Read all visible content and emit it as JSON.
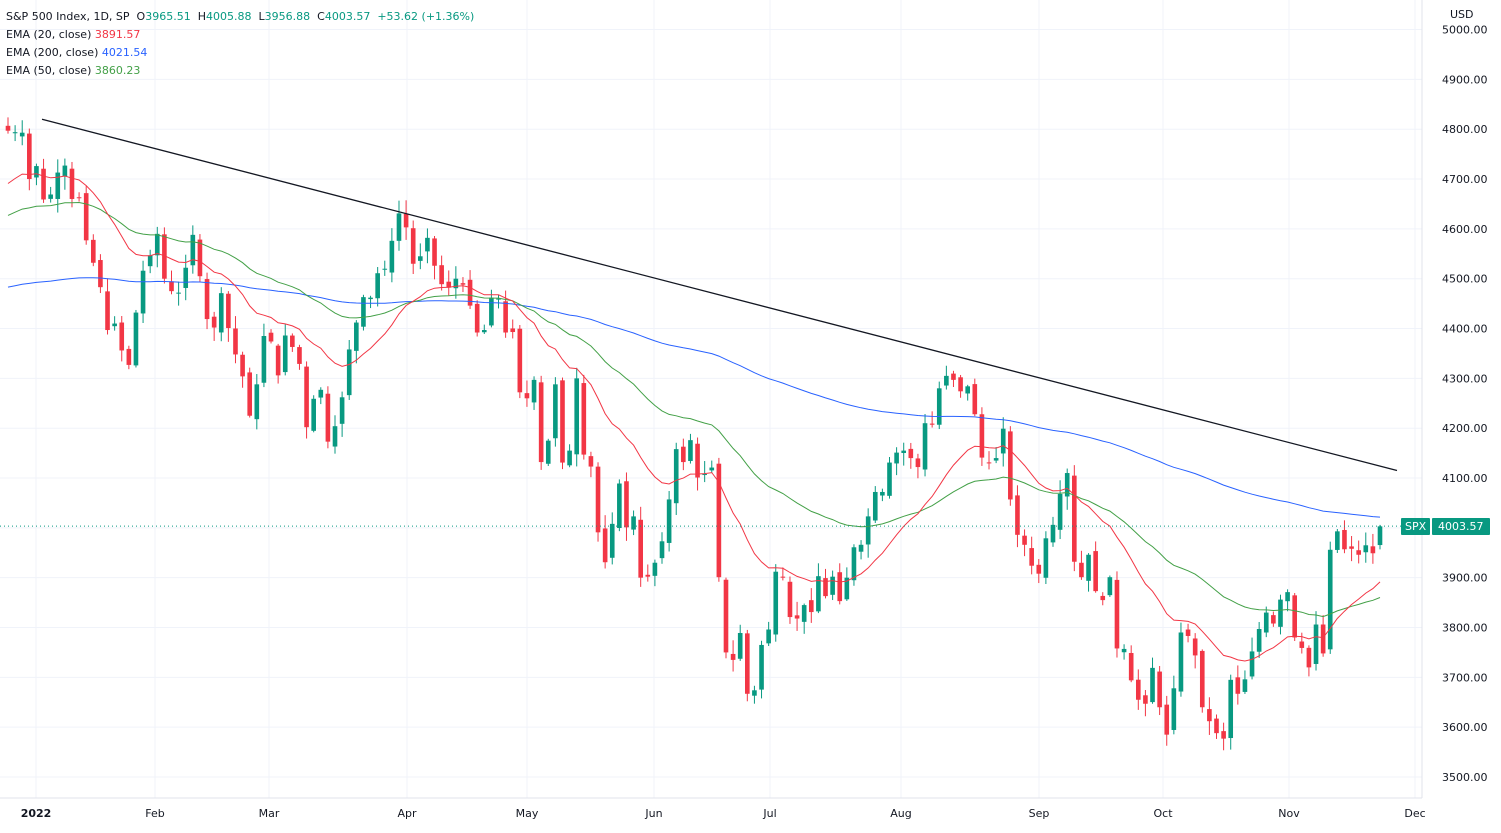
{
  "header": {
    "title": "S&P 500 Index, 1D, SP",
    "open_label": "O",
    "open": "3965.51",
    "high_label": "H",
    "high": "4005.88",
    "low_label": "L",
    "low": "3956.88",
    "close_label": "C",
    "close": "4003.57",
    "change": "+53.62 (+1.36%)"
  },
  "indicators": [
    {
      "label": "EMA (20, close)",
      "value": "3891.57",
      "color": "#f23645"
    },
    {
      "label": "EMA (200, close)",
      "value": "4021.54",
      "color": "#2962ff"
    },
    {
      "label": "EMA (50, close)",
      "value": "3860.23",
      "color": "#43a047"
    }
  ],
  "currency": "USD",
  "last_price": {
    "symbol": "SPX",
    "value": "4003.57"
  },
  "chart_data": {
    "type": "candlestick",
    "title": "S&P 500 Index, 1D, SP",
    "y_ticks": [
      "3500.00",
      "3600.00",
      "3700.00",
      "3800.00",
      "3900.00",
      "4000.00",
      "4100.00",
      "4200.00",
      "4300.00",
      "4400.00",
      "4500.00",
      "4600.00",
      "4700.00",
      "4800.00",
      "4900.00",
      "5000.00"
    ],
    "ylim": [
      3480,
      5010
    ],
    "x_labels": [
      "2022",
      "Feb",
      "Mar",
      "Apr",
      "May",
      "Jun",
      "Jul",
      "Aug",
      "Sep",
      "Oct",
      "Nov",
      "Dec"
    ],
    "close_series": [
      4797,
      4794,
      4793,
      4700,
      4726,
      4659,
      4669,
      4713,
      4727,
      4660,
      4662,
      4577,
      4532,
      4483,
      4397,
      4410,
      4356,
      4327,
      4432,
      4516,
      4547,
      4590,
      4500,
      4475,
      4472,
      4522,
      4588,
      4505,
      4419,
      4402,
      4471,
      4401,
      4348,
      4304,
      4225,
      4288,
      4385,
      4374,
      4306,
      4386,
      4363,
      4329,
      4202,
      4259,
      4277,
      4173,
      4204,
      4262,
      4358,
      4412,
      4463,
      4462,
      4511,
      4520,
      4576,
      4631,
      4603,
      4530,
      4545,
      4582,
      4526,
      4489,
      4482,
      4500,
      4488,
      4446,
      4392,
      4397,
      4462,
      4460,
      4392,
      4393,
      4272,
      4260,
      4297,
      4132,
      4175,
      4288,
      4131,
      4155,
      4300,
      4147,
      4123,
      3991,
      3931,
      4008,
      4089,
      4001,
      4023,
      3900,
      3902,
      3930,
      3973,
      4057,
      4158,
      4132,
      4176,
      4101,
      4108,
      4121,
      3901,
      3750,
      3735,
      3789,
      3667,
      3674,
      3765,
      3796,
      3912,
      3900,
      3821,
      3818,
      3845,
      3831,
      3903,
      3863,
      3902,
      3853,
      3900,
      3961,
      3966,
      4023,
      4072,
      4072,
      4131,
      4151,
      4155,
      4140,
      4122,
      4210,
      4207,
      4280,
      4305,
      4297,
      4274,
      4284,
      4228,
      4141,
      4131,
      4140,
      4199,
      4057,
      3986,
      3966,
      3924,
      3908,
      3979,
      4006,
      4068,
      4110,
      3932,
      3901,
      3946,
      3873,
      3855,
      3901,
      3758,
      3757,
      3694,
      3655,
      3647,
      3719,
      3640,
      3585,
      3678,
      3790,
      3783,
      3744,
      3640,
      3612,
      3588,
      3577,
      3695,
      3667,
      3696,
      3752,
      3797,
      3830,
      3808,
      3856,
      3871,
      3780,
      3759,
      3720,
      3806,
      3748,
      3956,
      3993,
      3957,
      3958,
      3946,
      3965,
      3949,
      4003
    ],
    "ema20_end": 3891.57,
    "ema50_end": 3860.23,
    "ema200_end": 4021.54,
    "trendline": {
      "start": 4820,
      "end": 4115
    },
    "last_close": 4003.57
  }
}
